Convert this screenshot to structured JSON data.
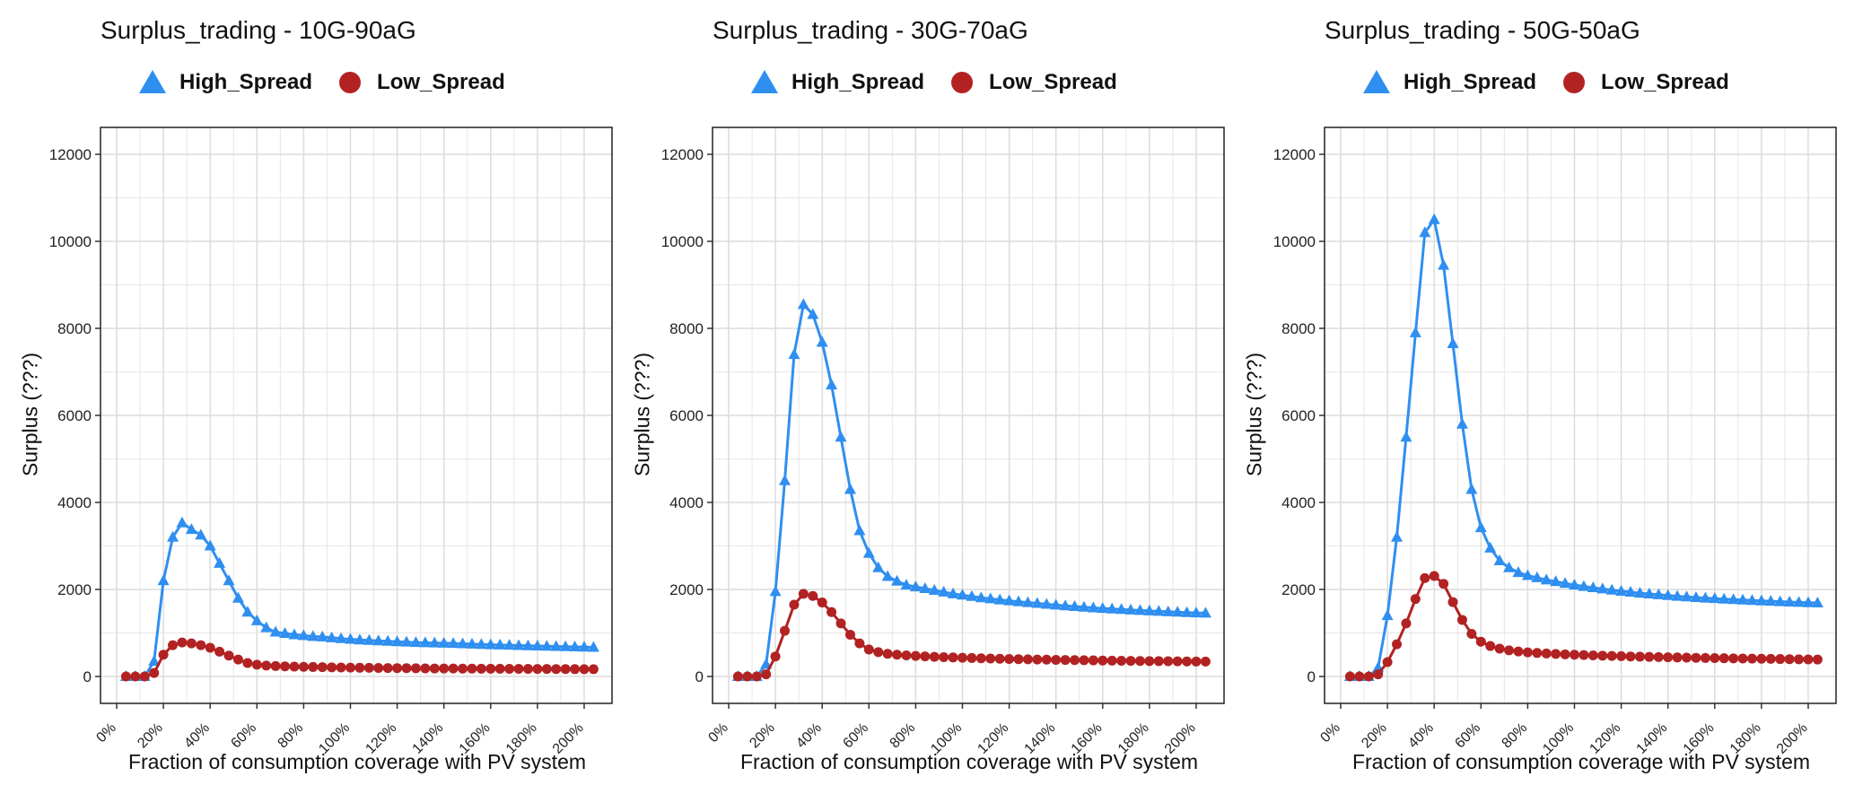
{
  "colors": {
    "high_spread": "#2f8ff0",
    "low_spread": "#b22222",
    "grid": "#e6e6e6",
    "frame": "#222222"
  },
  "chart_data": [
    {
      "type": "line",
      "title": "Surplus_trading - 10G-90aG",
      "xlabel": "Fraction of consumption coverage with PV system",
      "ylabel": "Surplus (???)",
      "ylim": [
        0,
        12000
      ],
      "xlim": [
        0,
        205
      ],
      "grid": true,
      "legend": "top",
      "y_ticks": [
        0,
        2000,
        4000,
        6000,
        8000,
        10000,
        12000
      ],
      "x_ticks": [
        0,
        20,
        40,
        60,
        80,
        100,
        120,
        140,
        160,
        180,
        200
      ],
      "x_tick_labels": [
        "0%",
        "20%",
        "40%",
        "60%",
        "80%",
        "100%",
        "120%",
        "140%",
        "160%",
        "180%",
        "200%"
      ],
      "x": [
        4,
        8,
        12,
        16,
        20,
        24,
        28,
        32,
        36,
        40,
        44,
        48,
        52,
        56,
        60,
        64,
        68,
        72,
        76,
        80,
        84,
        88,
        92,
        96,
        100,
        104,
        108,
        112,
        116,
        120,
        124,
        128,
        132,
        136,
        140,
        144,
        148,
        152,
        156,
        160,
        164,
        168,
        172,
        176,
        180,
        184,
        188,
        192,
        196,
        200,
        204
      ],
      "series": [
        {
          "name": "High_Spread",
          "marker": "triangle",
          "values": [
            0,
            0,
            0,
            350,
            2200,
            3200,
            3530,
            3380,
            3250,
            3000,
            2600,
            2200,
            1800,
            1480,
            1280,
            1120,
            1020,
            990,
            960,
            940,
            920,
            910,
            890,
            870,
            855,
            840,
            830,
            820,
            810,
            800,
            790,
            780,
            775,
            770,
            765,
            760,
            752,
            745,
            738,
            730,
            724,
            718,
            712,
            706,
            700,
            695,
            690,
            685,
            680,
            675,
            670
          ]
        },
        {
          "name": "Low_Spread",
          "marker": "circle",
          "values": [
            0,
            0,
            0,
            80,
            500,
            720,
            780,
            760,
            720,
            660,
            570,
            480,
            390,
            310,
            270,
            250,
            240,
            232,
            226,
            222,
            218,
            214,
            210,
            206,
            203,
            200,
            198,
            196,
            194,
            192,
            190,
            188,
            186,
            184,
            183,
            182,
            181,
            180,
            179,
            178,
            177,
            176,
            175,
            174,
            173,
            172,
            171,
            170,
            169,
            168,
            167
          ]
        }
      ]
    },
    {
      "type": "line",
      "title": "Surplus_trading - 30G-70aG",
      "xlabel": "Fraction of consumption coverage with PV system",
      "ylabel": "Surplus (???)",
      "ylim": [
        0,
        12000
      ],
      "xlim": [
        0,
        205
      ],
      "grid": true,
      "legend": "top",
      "y_ticks": [
        0,
        2000,
        4000,
        6000,
        8000,
        10000,
        12000
      ],
      "x_ticks": [
        0,
        20,
        40,
        60,
        80,
        100,
        120,
        140,
        160,
        180,
        200
      ],
      "x_tick_labels": [
        "0%",
        "20%",
        "40%",
        "60%",
        "80%",
        "100%",
        "120%",
        "140%",
        "160%",
        "180%",
        "200%"
      ],
      "x": [
        4,
        8,
        12,
        16,
        20,
        24,
        28,
        32,
        36,
        40,
        44,
        48,
        52,
        56,
        60,
        64,
        68,
        72,
        76,
        80,
        84,
        88,
        92,
        96,
        100,
        104,
        108,
        112,
        116,
        120,
        124,
        128,
        132,
        136,
        140,
        144,
        148,
        152,
        156,
        160,
        164,
        168,
        172,
        176,
        180,
        184,
        188,
        192,
        196,
        200,
        204
      ],
      "series": [
        {
          "name": "High_Spread",
          "marker": "triangle",
          "values": [
            0,
            0,
            0,
            280,
            1950,
            4500,
            7400,
            8550,
            8320,
            7680,
            6700,
            5500,
            4300,
            3350,
            2830,
            2500,
            2300,
            2190,
            2100,
            2060,
            2020,
            1980,
            1940,
            1900,
            1870,
            1840,
            1810,
            1785,
            1760,
            1740,
            1718,
            1698,
            1680,
            1660,
            1642,
            1625,
            1608,
            1592,
            1578,
            1565,
            1552,
            1540,
            1528,
            1517,
            1507,
            1497,
            1488,
            1479,
            1470,
            1462,
            1455
          ]
        },
        {
          "name": "Low_Spread",
          "marker": "circle",
          "values": [
            0,
            0,
            0,
            50,
            460,
            1050,
            1650,
            1900,
            1850,
            1700,
            1480,
            1220,
            960,
            760,
            620,
            560,
            520,
            500,
            485,
            472,
            462,
            452,
            444,
            437,
            430,
            424,
            418,
            412,
            407,
            402,
            398,
            394,
            390,
            386,
            382,
            379,
            376,
            373,
            370,
            367,
            364,
            361,
            358,
            356,
            354,
            352,
            350,
            348,
            346,
            344,
            342
          ]
        }
      ]
    },
    {
      "type": "line",
      "title": "Surplus_trading - 50G-50aG",
      "xlabel": "Fraction of consumption coverage with PV system",
      "ylabel": "Surplus (???)",
      "ylim": [
        0,
        12000
      ],
      "xlim": [
        0,
        205
      ],
      "grid": true,
      "legend": "top",
      "y_ticks": [
        0,
        2000,
        4000,
        6000,
        8000,
        10000,
        12000
      ],
      "x_ticks": [
        0,
        20,
        40,
        60,
        80,
        100,
        120,
        140,
        160,
        180,
        200
      ],
      "x_tick_labels": [
        "0%",
        "20%",
        "40%",
        "60%",
        "80%",
        "100%",
        "120%",
        "140%",
        "160%",
        "180%",
        "200%"
      ],
      "x": [
        4,
        8,
        12,
        16,
        20,
        24,
        28,
        32,
        36,
        40,
        44,
        48,
        52,
        56,
        60,
        64,
        68,
        72,
        76,
        80,
        84,
        88,
        92,
        96,
        100,
        104,
        108,
        112,
        116,
        120,
        124,
        128,
        132,
        136,
        140,
        144,
        148,
        152,
        156,
        160,
        164,
        168,
        172,
        176,
        180,
        184,
        188,
        192,
        196,
        200,
        204
      ],
      "series": [
        {
          "name": "High_Spread",
          "marker": "triangle",
          "values": [
            0,
            0,
            0,
            200,
            1400,
            3200,
            5500,
            7900,
            10200,
            10500,
            9450,
            7650,
            5800,
            4300,
            3420,
            2950,
            2660,
            2500,
            2390,
            2320,
            2270,
            2220,
            2180,
            2140,
            2100,
            2070,
            2040,
            2012,
            1985,
            1960,
            1938,
            1916,
            1896,
            1878,
            1860,
            1844,
            1829,
            1815,
            1802,
            1790,
            1778,
            1767,
            1757,
            1747,
            1738,
            1729,
            1720,
            1712,
            1704,
            1697,
            1690
          ]
        },
        {
          "name": "Low_Spread",
          "marker": "circle",
          "values": [
            0,
            0,
            0,
            50,
            330,
            740,
            1220,
            1780,
            2260,
            2310,
            2130,
            1710,
            1300,
            980,
            800,
            700,
            640,
            600,
            575,
            555,
            540,
            528,
            518,
            508,
            500,
            492,
            485,
            478,
            472,
            466,
            460,
            455,
            450,
            445,
            441,
            437,
            433,
            429,
            425,
            422,
            419,
            416,
            413,
            410,
            407,
            404,
            401,
            398,
            395,
            392,
            389
          ]
        }
      ]
    }
  ]
}
